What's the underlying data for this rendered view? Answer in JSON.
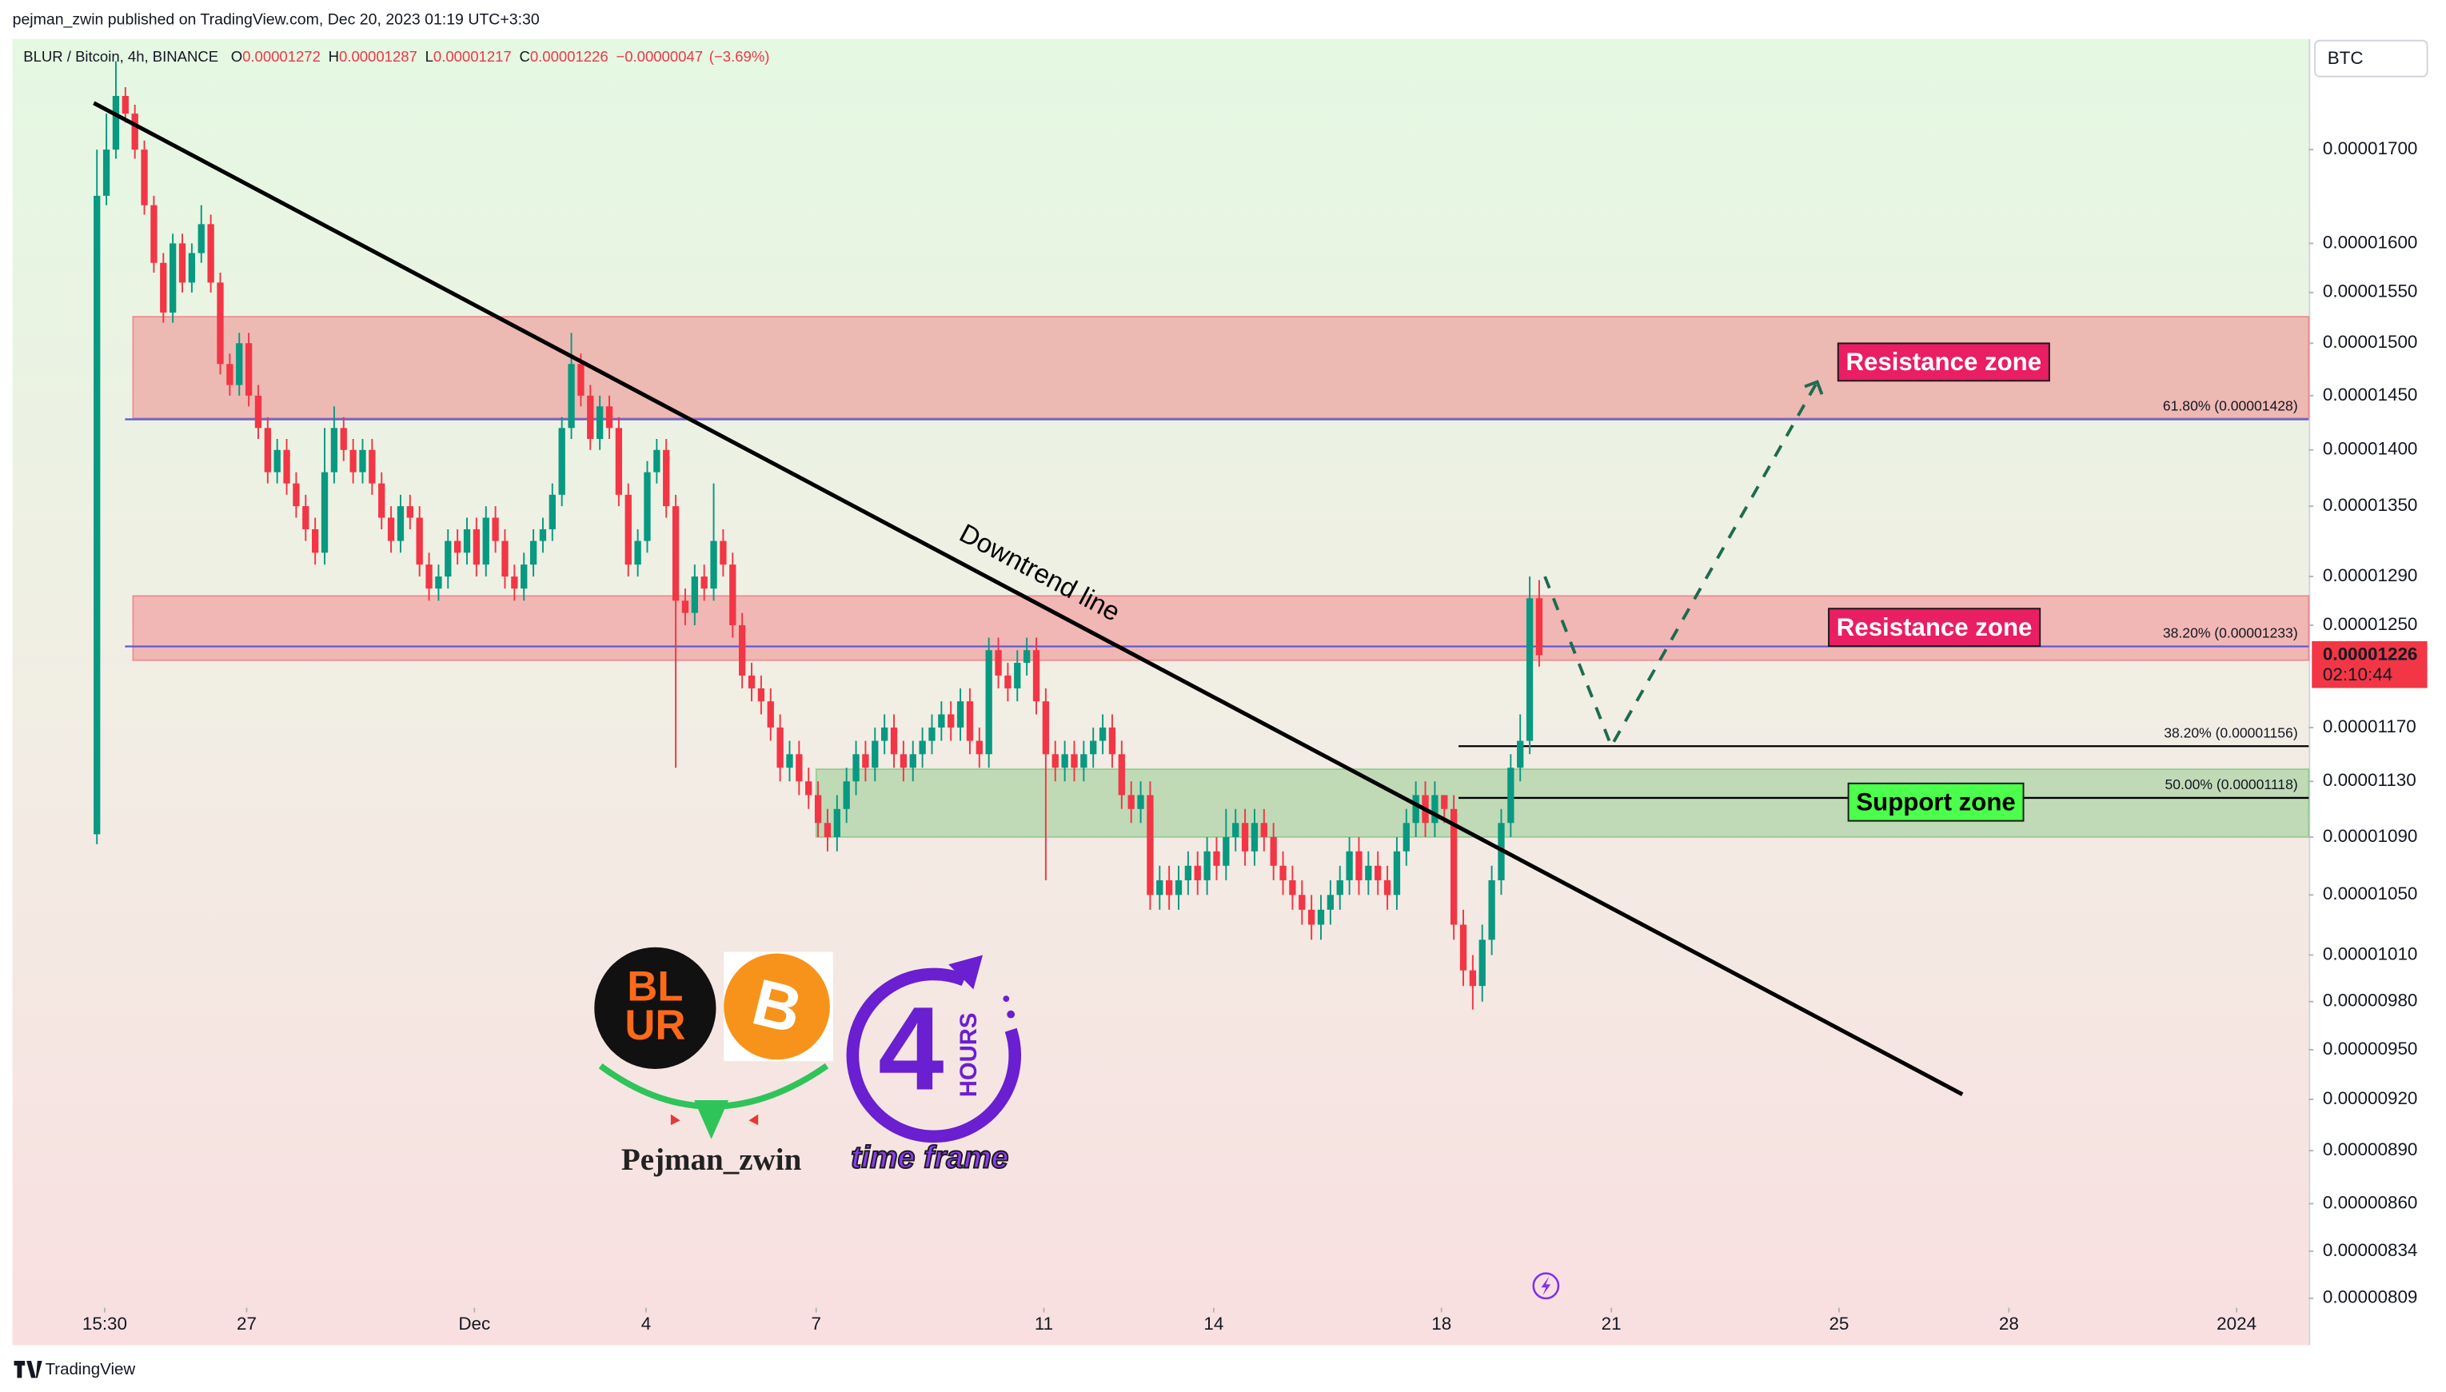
{
  "header": {
    "byline": "pejman_zwin published on TradingView.com, Dec 20, 2023 01:19 UTC+3:30"
  },
  "footer": {
    "brand": "TradingView"
  },
  "chart_data": {
    "type": "candlestick",
    "log_scale": true,
    "grid": false,
    "currency": "BTC",
    "legend": {
      "symbol": "BLUR / Bitcoin, 4h, BINANCE",
      "open_label": "O",
      "open": 1.272e-05,
      "high_label": "H",
      "high": 1.287e-05,
      "low_label": "L",
      "low": 1.217e-05,
      "close_label": "C",
      "close": 1.226e-05,
      "change": {
        "value": -4.7e-07,
        "label": "−0.00000047"
      },
      "change_pct": {
        "value": -3.69,
        "label": "(−3.69%)"
      }
    },
    "last_price": 1.226e-05,
    "countdown": "02:10:44",
    "xlim": [
      -8.9,
      233.1
    ],
    "xticks": [
      {
        "value": 0.82,
        "label": "15:30"
      },
      {
        "value": 15.78,
        "label": "27"
      },
      {
        "value": 39.78,
        "label": "Dec"
      },
      {
        "value": 57.87,
        "label": "4"
      },
      {
        "value": 75.8,
        "label": "7"
      },
      {
        "value": 99.8,
        "label": "11"
      },
      {
        "value": 117.7,
        "label": "14"
      },
      {
        "value": 141.7,
        "label": "18"
      },
      {
        "value": 159.6,
        "label": "21"
      },
      {
        "value": 183.6,
        "label": "25"
      },
      {
        "value": 201.5,
        "label": "28"
      },
      {
        "value": 225.5,
        "label": "2024"
      }
    ],
    "ylim": [
      8.065e-06,
      1.826e-05
    ],
    "yticks": [
      {
        "value": 1.7e-05,
        "label": "0.00001700"
      },
      {
        "value": 1.6e-05,
        "label": "0.00001600"
      },
      {
        "value": 1.55e-05,
        "label": "0.00001550"
      },
      {
        "value": 1.5e-05,
        "label": "0.00001500"
      },
      {
        "value": 1.45e-05,
        "label": "0.00001450"
      },
      {
        "value": 1.4e-05,
        "label": "0.00001400"
      },
      {
        "value": 1.35e-05,
        "label": "0.00001350"
      },
      {
        "value": 1.29e-05,
        "label": "0.00001290"
      },
      {
        "value": 1.25e-05,
        "label": "0.00001250"
      },
      {
        "value": 1.17e-05,
        "label": "0.00001170"
      },
      {
        "value": 1.13e-05,
        "label": "0.00001130"
      },
      {
        "value": 1.09e-05,
        "label": "0.00001090"
      },
      {
        "value": 1.05e-05,
        "label": "0.00001050"
      },
      {
        "value": 1.01e-05,
        "label": "0.00001010"
      },
      {
        "value": 9.8e-06,
        "label": "0.00000980"
      },
      {
        "value": 9.5e-06,
        "label": "0.00000950"
      },
      {
        "value": 9.2e-06,
        "label": "0.00000920"
      },
      {
        "value": 8.9e-06,
        "label": "0.00000890"
      },
      {
        "value": 8.6e-06,
        "label": "0.00000860"
      },
      {
        "value": 8.34e-06,
        "label": "0.00000834"
      },
      {
        "value": 8.09e-06,
        "label": "0.00000809"
      }
    ],
    "candles": {
      "up_color": "#089981",
      "down_color": "#f23645",
      "open": [
        1.092e-05,
        1.65e-05,
        1.7e-05,
        1.76e-05,
        1.74e-05,
        1.7e-05,
        1.64e-05,
        1.58e-05,
        1.53e-05,
        1.6e-05,
        1.56e-05,
        1.59e-05,
        1.62e-05,
        1.56e-05,
        1.48e-05,
        1.46e-05,
        1.5e-05,
        1.45e-05,
        1.42e-05,
        1.38e-05,
        1.4e-05,
        1.37e-05,
        1.35e-05,
        1.33e-05,
        1.31e-05,
        1.38e-05,
        1.42e-05,
        1.4e-05,
        1.38e-05,
        1.4e-05,
        1.37e-05,
        1.34e-05,
        1.32e-05,
        1.35e-05,
        1.34e-05,
        1.3e-05,
        1.28e-05,
        1.29e-05,
        1.32e-05,
        1.31e-05,
        1.33e-05,
        1.3e-05,
        1.34e-05,
        1.32e-05,
        1.29e-05,
        1.28e-05,
        1.3e-05,
        1.32e-05,
        1.33e-05,
        1.36e-05,
        1.42e-05,
        1.48e-05,
        1.45e-05,
        1.41e-05,
        1.44e-05,
        1.42e-05,
        1.36e-05,
        1.3e-05,
        1.32e-05,
        1.38e-05,
        1.4e-05,
        1.35e-05,
        1.27e-05,
        1.26e-05,
        1.29e-05,
        1.28e-05,
        1.32e-05,
        1.3e-05,
        1.25e-05,
        1.21e-05,
        1.2e-05,
        1.19e-05,
        1.17e-05,
        1.14e-05,
        1.15e-05,
        1.13e-05,
        1.12e-05,
        1.1e-05,
        1.09e-05,
        1.11e-05,
        1.13e-05,
        1.15e-05,
        1.14e-05,
        1.16e-05,
        1.17e-05,
        1.15e-05,
        1.14e-05,
        1.15e-05,
        1.16e-05,
        1.17e-05,
        1.18e-05,
        1.17e-05,
        1.19e-05,
        1.16e-05,
        1.15e-05,
        1.23e-05,
        1.21e-05,
        1.2e-05,
        1.22e-05,
        1.23e-05,
        1.19e-05,
        1.15e-05,
        1.14e-05,
        1.15e-05,
        1.14e-05,
        1.15e-05,
        1.16e-05,
        1.17e-05,
        1.15e-05,
        1.12e-05,
        1.11e-05,
        1.12e-05,
        1.05e-05,
        1.06e-05,
        1.05e-05,
        1.06e-05,
        1.07e-05,
        1.06e-05,
        1.08e-05,
        1.07e-05,
        1.09e-05,
        1.1e-05,
        1.08e-05,
        1.1e-05,
        1.09e-05,
        1.07e-05,
        1.06e-05,
        1.05e-05,
        1.04e-05,
        1.03e-05,
        1.04e-05,
        1.05e-05,
        1.06e-05,
        1.08e-05,
        1.06e-05,
        1.07e-05,
        1.06e-05,
        1.05e-05,
        1.08e-05,
        1.1e-05,
        1.12e-05,
        1.1e-05,
        1.12e-05,
        1.11e-05,
        1.03e-05,
        1e-05,
        9.9e-06,
        1.02e-05,
        1.06e-05,
        1.1e-05,
        1.14e-05,
        1.16e-05,
        1.272e-05
      ],
      "high": [
        1.7e-05,
        1.74e-05,
        1.8e-05,
        1.77e-05,
        1.75e-05,
        1.71e-05,
        1.65e-05,
        1.59e-05,
        1.61e-05,
        1.61e-05,
        1.6e-05,
        1.64e-05,
        1.63e-05,
        1.57e-05,
        1.49e-05,
        1.51e-05,
        1.51e-05,
        1.46e-05,
        1.43e-05,
        1.41e-05,
        1.41e-05,
        1.38e-05,
        1.36e-05,
        1.34e-05,
        1.42e-05,
        1.44e-05,
        1.43e-05,
        1.41e-05,
        1.41e-05,
        1.41e-05,
        1.38e-05,
        1.35e-05,
        1.36e-05,
        1.36e-05,
        1.35e-05,
        1.31e-05,
        1.3e-05,
        1.33e-05,
        1.33e-05,
        1.34e-05,
        1.34e-05,
        1.35e-05,
        1.35e-05,
        1.33e-05,
        1.3e-05,
        1.31e-05,
        1.33e-05,
        1.34e-05,
        1.37e-05,
        1.43e-05,
        1.51e-05,
        1.49e-05,
        1.46e-05,
        1.45e-05,
        1.45e-05,
        1.43e-05,
        1.37e-05,
        1.33e-05,
        1.39e-05,
        1.41e-05,
        1.41e-05,
        1.36e-05,
        1.28e-05,
        1.3e-05,
        1.3e-05,
        1.37e-05,
        1.33e-05,
        1.31e-05,
        1.26e-05,
        1.22e-05,
        1.21e-05,
        1.2e-05,
        1.18e-05,
        1.16e-05,
        1.16e-05,
        1.14e-05,
        1.13e-05,
        1.11e-05,
        1.12e-05,
        1.14e-05,
        1.16e-05,
        1.16e-05,
        1.17e-05,
        1.18e-05,
        1.18e-05,
        1.16e-05,
        1.16e-05,
        1.17e-05,
        1.18e-05,
        1.19e-05,
        1.19e-05,
        1.2e-05,
        1.2e-05,
        1.17e-05,
        1.24e-05,
        1.24e-05,
        1.22e-05,
        1.23e-05,
        1.24e-05,
        1.24e-05,
        1.2e-05,
        1.16e-05,
        1.16e-05,
        1.16e-05,
        1.16e-05,
        1.17e-05,
        1.18e-05,
        1.18e-05,
        1.16e-05,
        1.13e-05,
        1.13e-05,
        1.13e-05,
        1.07e-05,
        1.07e-05,
        1.07e-05,
        1.08e-05,
        1.08e-05,
        1.09e-05,
        1.09e-05,
        1.11e-05,
        1.11e-05,
        1.11e-05,
        1.11e-05,
        1.11e-05,
        1.1e-05,
        1.08e-05,
        1.07e-05,
        1.06e-05,
        1.05e-05,
        1.05e-05,
        1.06e-05,
        1.07e-05,
        1.09e-05,
        1.09e-05,
        1.08e-05,
        1.08e-05,
        1.07e-05,
        1.09e-05,
        1.11e-05,
        1.13e-05,
        1.13e-05,
        1.13e-05,
        1.12e-05,
        1.12e-05,
        1.04e-05,
        1.01e-05,
        1.03e-05,
        1.07e-05,
        1.11e-05,
        1.15e-05,
        1.18e-05,
        1.29e-05,
        1.287e-05
      ],
      "low": [
        1.085e-05,
        1.64e-05,
        1.69e-05,
        1.73e-05,
        1.69e-05,
        1.63e-05,
        1.57e-05,
        1.52e-05,
        1.52e-05,
        1.55e-05,
        1.55e-05,
        1.58e-05,
        1.55e-05,
        1.47e-05,
        1.45e-05,
        1.45e-05,
        1.44e-05,
        1.41e-05,
        1.37e-05,
        1.37e-05,
        1.36e-05,
        1.34e-05,
        1.32e-05,
        1.3e-05,
        1.3e-05,
        1.37e-05,
        1.39e-05,
        1.37e-05,
        1.37e-05,
        1.36e-05,
        1.33e-05,
        1.31e-05,
        1.31e-05,
        1.33e-05,
        1.29e-05,
        1.27e-05,
        1.27e-05,
        1.28e-05,
        1.3e-05,
        1.3e-05,
        1.29e-05,
        1.29e-05,
        1.31e-05,
        1.28e-05,
        1.27e-05,
        1.27e-05,
        1.29e-05,
        1.31e-05,
        1.32e-05,
        1.35e-05,
        1.41e-05,
        1.44e-05,
        1.4e-05,
        1.4e-05,
        1.41e-05,
        1.35e-05,
        1.29e-05,
        1.29e-05,
        1.31e-05,
        1.37e-05,
        1.34e-05,
        1.14e-05,
        1.25e-05,
        1.25e-05,
        1.27e-05,
        1.27e-05,
        1.29e-05,
        1.24e-05,
        1.2e-05,
        1.19e-05,
        1.18e-05,
        1.16e-05,
        1.13e-05,
        1.13e-05,
        1.12e-05,
        1.11e-05,
        1.09e-05,
        1.08e-05,
        1.08e-05,
        1.1e-05,
        1.12e-05,
        1.13e-05,
        1.13e-05,
        1.15e-05,
        1.14e-05,
        1.13e-05,
        1.13e-05,
        1.14e-05,
        1.15e-05,
        1.16e-05,
        1.16e-05,
        1.16e-05,
        1.15e-05,
        1.14e-05,
        1.14e-05,
        1.2e-05,
        1.19e-05,
        1.19e-05,
        1.21e-05,
        1.18e-05,
        1.06e-05,
        1.13e-05,
        1.13e-05,
        1.13e-05,
        1.13e-05,
        1.14e-05,
        1.15e-05,
        1.14e-05,
        1.11e-05,
        1.1e-05,
        1.1e-05,
        1.04e-05,
        1.04e-05,
        1.04e-05,
        1.04e-05,
        1.05e-05,
        1.05e-05,
        1.05e-05,
        1.06e-05,
        1.06e-05,
        1.08e-05,
        1.07e-05,
        1.07e-05,
        1.08e-05,
        1.06e-05,
        1.05e-05,
        1.04e-05,
        1.03e-05,
        1.02e-05,
        1.02e-05,
        1.03e-05,
        1.04e-05,
        1.05e-05,
        1.05e-05,
        1.05e-05,
        1.05e-05,
        1.04e-05,
        1.04e-05,
        1.07e-05,
        1.09e-05,
        1.09e-05,
        1.09e-05,
        1.1e-05,
        1.02e-05,
        9.9e-06,
        9.75e-06,
        9.8e-06,
        1.01e-05,
        1.05e-05,
        1.09e-05,
        1.13e-05,
        1.15e-05,
        1.217e-05
      ],
      "close": [
        1.65e-05,
        1.7e-05,
        1.76e-05,
        1.74e-05,
        1.7e-05,
        1.64e-05,
        1.58e-05,
        1.53e-05,
        1.6e-05,
        1.56e-05,
        1.59e-05,
        1.62e-05,
        1.56e-05,
        1.48e-05,
        1.46e-05,
        1.5e-05,
        1.45e-05,
        1.42e-05,
        1.38e-05,
        1.4e-05,
        1.37e-05,
        1.35e-05,
        1.33e-05,
        1.31e-05,
        1.38e-05,
        1.42e-05,
        1.4e-05,
        1.38e-05,
        1.4e-05,
        1.37e-05,
        1.34e-05,
        1.32e-05,
        1.35e-05,
        1.34e-05,
        1.3e-05,
        1.28e-05,
        1.29e-05,
        1.32e-05,
        1.31e-05,
        1.33e-05,
        1.3e-05,
        1.34e-05,
        1.32e-05,
        1.29e-05,
        1.28e-05,
        1.3e-05,
        1.32e-05,
        1.33e-05,
        1.36e-05,
        1.42e-05,
        1.48e-05,
        1.45e-05,
        1.41e-05,
        1.44e-05,
        1.42e-05,
        1.36e-05,
        1.3e-05,
        1.32e-05,
        1.38e-05,
        1.4e-05,
        1.35e-05,
        1.27e-05,
        1.26e-05,
        1.29e-05,
        1.28e-05,
        1.32e-05,
        1.3e-05,
        1.25e-05,
        1.21e-05,
        1.2e-05,
        1.19e-05,
        1.17e-05,
        1.14e-05,
        1.15e-05,
        1.13e-05,
        1.12e-05,
        1.1e-05,
        1.09e-05,
        1.11e-05,
        1.13e-05,
        1.15e-05,
        1.14e-05,
        1.16e-05,
        1.17e-05,
        1.15e-05,
        1.14e-05,
        1.15e-05,
        1.16e-05,
        1.17e-05,
        1.18e-05,
        1.17e-05,
        1.19e-05,
        1.16e-05,
        1.15e-05,
        1.23e-05,
        1.21e-05,
        1.2e-05,
        1.22e-05,
        1.23e-05,
        1.19e-05,
        1.15e-05,
        1.14e-05,
        1.15e-05,
        1.14e-05,
        1.15e-05,
        1.16e-05,
        1.17e-05,
        1.15e-05,
        1.12e-05,
        1.11e-05,
        1.12e-05,
        1.05e-05,
        1.06e-05,
        1.05e-05,
        1.06e-05,
        1.07e-05,
        1.06e-05,
        1.08e-05,
        1.07e-05,
        1.09e-05,
        1.1e-05,
        1.08e-05,
        1.1e-05,
        1.09e-05,
        1.07e-05,
        1.06e-05,
        1.05e-05,
        1.04e-05,
        1.03e-05,
        1.04e-05,
        1.05e-05,
        1.06e-05,
        1.08e-05,
        1.06e-05,
        1.07e-05,
        1.06e-05,
        1.05e-05,
        1.08e-05,
        1.1e-05,
        1.12e-05,
        1.1e-05,
        1.12e-05,
        1.11e-05,
        1.03e-05,
        1e-05,
        9.9e-06,
        1.02e-05,
        1.06e-05,
        1.1e-05,
        1.14e-05,
        1.16e-05,
        1.272e-05,
        1.226e-05
      ]
    },
    "zones": [
      {
        "label": "Resistance zone",
        "start": 3.8,
        "top": 1.526e-05,
        "bottom": 1.429e-05,
        "color": "#f23645",
        "label_color": "#e91e63"
      },
      {
        "label": "Resistance zone",
        "start": 3.8,
        "top": 1.274e-05,
        "bottom": 1.222e-05,
        "color": "#f23645",
        "label_color": "#e91e63"
      },
      {
        "label": "Support zone",
        "start": 75.8,
        "top": 1.139e-05,
        "bottom": 1.09e-05,
        "color": "#4caf50",
        "label_color": "#4cff4c"
      }
    ],
    "fib_levels": [
      {
        "label": "61.80% (0.00001428)",
        "value": 1.428e-05,
        "start": 2.96,
        "color": "#5b5bd6"
      },
      {
        "label": "38.20% (0.00001233)",
        "value": 1.233e-05,
        "start": 2.96,
        "color": "#5b5bd6"
      },
      {
        "label": "38.20% (0.00001156)",
        "value": 1.156e-05,
        "start": 143.5,
        "color": "#000000"
      },
      {
        "label": "50.00% (0.00001118)",
        "value": 1.118e-05,
        "start": 143.5,
        "color": "#000000"
      }
    ],
    "trendline": {
      "label": "Downtrend line",
      "x": [
        -0.33,
        196.6
      ],
      "y": [
        1.752e-05,
        9.23e-06
      ],
      "color": "#000000"
    },
    "projection": {
      "x": [
        152.6,
        159.6,
        181.3
      ],
      "y": [
        1.29e-05,
        1.156e-05,
        1.463e-05
      ],
      "color": "#1e6b4f"
    },
    "watermark": {
      "blur_top": "BL",
      "blur_bottom": "UR",
      "btc": "B",
      "hours_number": "4",
      "hours_word": "HOURS",
      "time_frame": "time frame",
      "author": "Pejman_zwin"
    }
  }
}
